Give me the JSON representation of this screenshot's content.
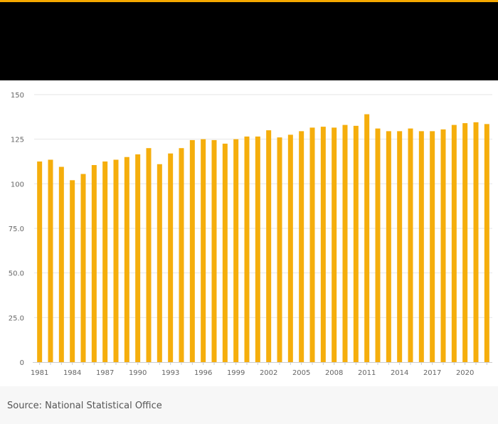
{
  "colors": {
    "accent": "#f5a800",
    "bar": "#f5ae0c",
    "header": "#000000",
    "grid": "#e6e6e6",
    "tick_text": "#666666"
  },
  "source": "Source: National Statistical Office",
  "chart_data": {
    "type": "bar",
    "title": "",
    "xlabel": "",
    "ylabel": "",
    "ylim": [
      0,
      150
    ],
    "y_ticks": [
      0,
      25,
      50,
      75,
      100,
      125,
      150
    ],
    "y_tick_labels": [
      "0",
      "25.0",
      "50.0",
      "75.0",
      "100",
      "125",
      "150"
    ],
    "grid": true,
    "categories": [
      1981,
      1982,
      1983,
      1984,
      1985,
      1986,
      1987,
      1988,
      1989,
      1990,
      1991,
      1992,
      1993,
      1994,
      1995,
      1996,
      1997,
      1998,
      1999,
      2000,
      2001,
      2002,
      2003,
      2004,
      2005,
      2006,
      2007,
      2008,
      2009,
      2010,
      2011,
      2012,
      2013,
      2014,
      2015,
      2016,
      2017,
      2018,
      2019,
      2020,
      2021,
      2022
    ],
    "x_tick_labels": [
      "1981",
      "1984",
      "1987",
      "1990",
      "1993",
      "1996",
      "1999",
      "2002",
      "2005",
      "2008",
      "2011",
      "2014",
      "2017",
      "2020"
    ],
    "values": [
      112.5,
      113.5,
      109.5,
      102,
      105.5,
      110.5,
      112.5,
      113.5,
      115,
      116.5,
      120,
      111,
      117,
      120,
      124.5,
      125,
      124.5,
      122.5,
      125,
      126.5,
      126.5,
      130,
      126,
      127.5,
      129.5,
      131.5,
      132,
      131.5,
      133,
      132.5,
      139,
      131,
      129.5,
      129.5,
      131,
      129.5,
      129.5,
      130.5,
      133,
      134,
      134.5,
      133.5
    ]
  }
}
